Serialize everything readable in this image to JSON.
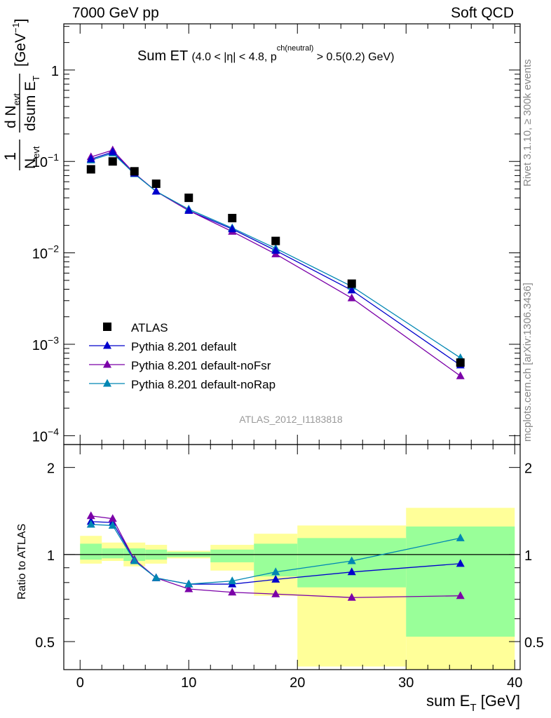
{
  "header": {
    "left": "7000 GeV pp",
    "right": "Soft QCD"
  },
  "side_labels": {
    "rivet": "Rivet 3.1.10, ≥ 300k events",
    "mcplots": "mcplots.cern.ch [arXiv:1306.3436]"
  },
  "colors": {
    "ATLAS": "#000000",
    "default": "#0000cc",
    "noFsr": "#7b00a8",
    "noRap": "#0086b3",
    "band_inner": "#99ff99",
    "band_outer": "#ffff99"
  },
  "chart_data": [
    {
      "type": "scatter",
      "panel": "main",
      "title": "Sum ET",
      "title_qualifier": "(4.0 < |η| < 4.8, p_T^ch(neutral) > 0.5(0.2) GeV)",
      "ylabel": "1/N_evt dN_evt/dsum E_T [GeV^-1]",
      "y_scale": "log",
      "xlim": [
        -1.5,
        40.5
      ],
      "ylim": [
        8e-05,
        3.2
      ],
      "y_ticks": [
        {
          "value": 0.0001,
          "base": "10",
          "exp": "−4"
        },
        {
          "value": 0.001,
          "base": "10",
          "exp": "−3"
        },
        {
          "value": 0.01,
          "base": "10",
          "exp": "−2"
        },
        {
          "value": 0.1,
          "base": "10",
          "exp": "−1"
        },
        {
          "value": 1,
          "base": "1",
          "exp": ""
        }
      ],
      "watermark": "ATLAS_2012_I1183818",
      "legend_position": "lower-left",
      "series": [
        {
          "name": "ATLAS",
          "marker": "square",
          "x": [
            1,
            3,
            5,
            7,
            10,
            14,
            18,
            25,
            35
          ],
          "y": [
            0.082,
            0.1,
            0.078,
            0.057,
            0.04,
            0.024,
            0.0135,
            0.0046,
            0.00063
          ]
        },
        {
          "name": "Pythia 8.201 default",
          "marker": "triangle",
          "x": [
            1,
            3,
            5,
            7,
            10,
            14,
            18,
            25,
            35
          ],
          "y": [
            0.106,
            0.127,
            0.074,
            0.047,
            0.029,
            0.0182,
            0.0106,
            0.0039,
            0.00059
          ]
        },
        {
          "name": "Pythia 8.201 default-noFsr",
          "marker": "triangle",
          "x": [
            1,
            3,
            5,
            7,
            10,
            14,
            18,
            25,
            35
          ],
          "y": [
            0.112,
            0.133,
            0.074,
            0.047,
            0.029,
            0.0171,
            0.0097,
            0.0032,
            0.00045
          ]
        },
        {
          "name": "Pythia 8.201 default-noRap",
          "marker": "triangle",
          "x": [
            1,
            3,
            5,
            7,
            10,
            14,
            18,
            25,
            35
          ],
          "y": [
            0.103,
            0.123,
            0.073,
            0.047,
            0.03,
            0.0187,
            0.0112,
            0.0043,
            0.00071
          ]
        }
      ]
    },
    {
      "type": "line",
      "panel": "ratio",
      "xlabel": "sum E_T [GeV]",
      "ylabel": "Ratio to ATLAS",
      "y_scale": "log",
      "xlim": [
        -1.5,
        40.5
      ],
      "ylim": [
        0.4,
        2.4
      ],
      "x_ticks": [
        0,
        10,
        20,
        30,
        40
      ],
      "y_ticks": [
        0.5,
        1,
        2
      ],
      "reference_line": 1,
      "bands": [
        {
          "xlo": 0,
          "xhi": 2,
          "inner": [
            0.96,
            1.09
          ],
          "outer": [
            0.93,
            1.16
          ]
        },
        {
          "xlo": 2,
          "xhi": 4,
          "inner": [
            0.97,
            1.05
          ],
          "outer": [
            0.95,
            1.1
          ]
        },
        {
          "xlo": 4,
          "xhi": 6,
          "inner": [
            0.95,
            1.05
          ],
          "outer": [
            0.91,
            1.1
          ]
        },
        {
          "xlo": 6,
          "xhi": 8,
          "inner": [
            0.96,
            1.04
          ],
          "outer": [
            0.93,
            1.08
          ]
        },
        {
          "xlo": 8,
          "xhi": 12,
          "inner": [
            0.98,
            1.02
          ],
          "outer": [
            0.97,
            1.03
          ]
        },
        {
          "xlo": 12,
          "xhi": 16,
          "inner": [
            0.94,
            1.04
          ],
          "outer": [
            0.88,
            1.08
          ]
        },
        {
          "xlo": 16,
          "xhi": 20,
          "inner": [
            0.84,
            1.09
          ],
          "outer": [
            0.72,
            1.18
          ]
        },
        {
          "xlo": 20,
          "xhi": 30,
          "inner": [
            0.77,
            1.14
          ],
          "outer": [
            0.41,
            1.26
          ]
        },
        {
          "xlo": 30,
          "xhi": 40,
          "inner": [
            0.52,
            1.25
          ],
          "outer": [
            0.35,
            1.45
          ]
        }
      ],
      "series": [
        {
          "name": "Pythia 8.201 default",
          "x": [
            1,
            3,
            5,
            7,
            10,
            14,
            18,
            25,
            35
          ],
          "y": [
            1.3,
            1.29,
            0.96,
            0.83,
            0.79,
            0.79,
            0.82,
            0.87,
            0.93
          ]
        },
        {
          "name": "Pythia 8.201 default-noFsr",
          "x": [
            1,
            3,
            5,
            7,
            10,
            14,
            18,
            25,
            35
          ],
          "y": [
            1.36,
            1.33,
            0.96,
            0.83,
            0.76,
            0.74,
            0.73,
            0.71,
            0.72
          ]
        },
        {
          "name": "Pythia 8.201 default-noRap",
          "x": [
            1,
            3,
            5,
            7,
            10,
            14,
            18,
            25,
            35
          ],
          "y": [
            1.27,
            1.26,
            0.95,
            0.83,
            0.79,
            0.81,
            0.87,
            0.95,
            1.14
          ]
        }
      ]
    }
  ]
}
